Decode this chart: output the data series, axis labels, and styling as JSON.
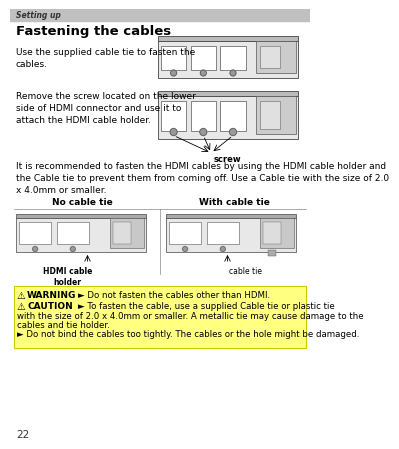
{
  "page_number": "22",
  "header_text": "Setting up",
  "header_bg": "#c0c0c0",
  "title": "Fastening the cables",
  "para1": "Use the supplied cable tie to fasten the\ncables.",
  "para2": "Remove the screw located on the lower\nside of HDMI connector and use it to\nattach the HDMI cable holder.",
  "screw_label": "screw",
  "para3": "It is recommended to fasten the HDMI cables by using the HDMI cable holder and\nthe Cable tie to prevent them from coming off. Use a Cable tie with the size of 2.0\nx 4.0mm or smaller.",
  "label_no_cable": "No cable tie",
  "label_with_cable": "With cable tie",
  "label_hdmi_holder": "HDMI cable\nholder",
  "label_cable_tie": "cable tie",
  "warning_bg": "#ffff80",
  "warning_label": "WARNING",
  "warning_text": "► Do not fasten the cables other than HDMI.",
  "caution_label": "CAUTION",
  "caution_text1": "► To fasten the cable, use a supplied Cable tie or plastic tie",
  "caution_text2": "with the size of 2.0 x 4.0mm or smaller. A metallic tie may cause damage to the",
  "caution_text3": "cables and tie holder.",
  "caution_text4": "► Do not bind the cables too tightly. The cables or the hole might be damaged.",
  "bg_color": "#ffffff",
  "text_color": "#000000"
}
